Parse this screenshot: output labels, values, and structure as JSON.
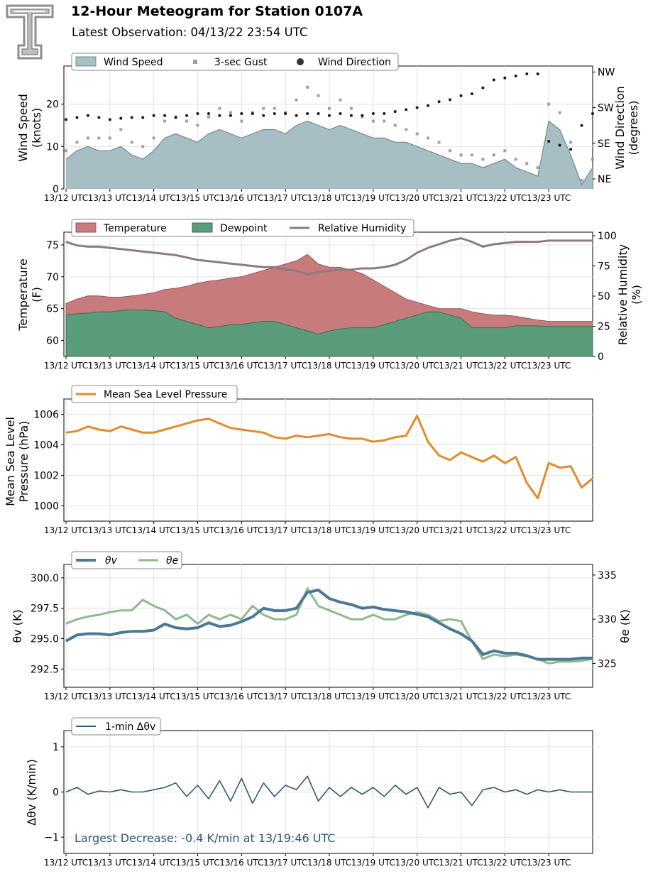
{
  "header": {
    "title": "12-Hour Meteogram for Station 0107A",
    "subtitle": "Latest Observation: 04/13/22 23:54 UTC",
    "logo_icon": "double-t-logo-icon"
  },
  "colors": {
    "wind_speed_fill": "#a7bfc3",
    "wind_speed_line": "#6b8d93",
    "gust": "#a39bb5",
    "wind_dir": "#1a1a1a",
    "temperature": "#c77b7d",
    "dewpoint": "#5a9b79",
    "rh": "#8e7b7d",
    "mslp": "#e38a2d",
    "theta_v": "#4a7a96",
    "theta_e": "#8fb98f",
    "dtheta": "#2e5a6e",
    "annotation": "#2a5a75"
  },
  "time_ticks": [
    "13/12 UTC",
    "13/13 UTC",
    "13/14 UTC",
    "13/15 UTC",
    "13/16 UTC",
    "13/17 UTC",
    "13/18 UTC",
    "13/19 UTC",
    "13/20 UTC",
    "13/21 UTC",
    "13/22 UTC",
    "13/23 UTC"
  ],
  "panels": {
    "wind": {
      "ylabel_left": [
        "Wind Speed",
        "(knots)"
      ],
      "ylabel_right": [
        "Wind Direction",
        "(degrees)"
      ],
      "yticks_left": [
        "0",
        "10",
        "20"
      ],
      "yticks_right": [
        "NE",
        "SE",
        "SW",
        "NW"
      ],
      "legend": {
        "speed": "Wind Speed",
        "gust": "3-sec Gust",
        "direction": "Wind Direction"
      }
    },
    "temp": {
      "ylabel_left": [
        "Temperature",
        "(F)"
      ],
      "ylabel_right": [
        "Relative Humidity",
        "(%)"
      ],
      "yticks_left": [
        "60",
        "65",
        "70",
        "75"
      ],
      "yticks_right": [
        "0",
        "25",
        "50",
        "75",
        "100"
      ],
      "legend": {
        "temp": "Temperature",
        "dew": "Dewpoint",
        "rh": "Relative Humidity"
      }
    },
    "mslp": {
      "ylabel_left": [
        "Mean Sea Level",
        "Pressure (hPa)"
      ],
      "yticks_left": [
        "1000",
        "1002",
        "1004",
        "1006"
      ],
      "legend": {
        "mslp": "Mean Sea Level Pressure"
      }
    },
    "theta": {
      "ylabel_left": "θv (K)",
      "ylabel_right": "θe (K)",
      "yticks_left": [
        "292.5",
        "295.0",
        "297.5",
        "300.0"
      ],
      "yticks_right": [
        "325",
        "330",
        "335"
      ],
      "legend": {
        "tv": "θv",
        "te": "θe"
      }
    },
    "dtheta": {
      "ylabel_left": "Δθv (K/min)",
      "yticks_left": [
        "−1",
        "0",
        "1"
      ],
      "legend": {
        "d": "1-min Δθv"
      },
      "annotation": "Largest Decrease: -0.4 K/min at 13/19:46 UTC"
    }
  },
  "chart_data": [
    {
      "type": "area",
      "title": "",
      "x_hours": [
        0,
        0.25,
        0.5,
        0.75,
        1,
        1.25,
        1.5,
        1.75,
        2,
        2.25,
        2.5,
        2.75,
        3,
        3.25,
        3.5,
        3.75,
        4,
        4.25,
        4.5,
        4.75,
        5,
        5.25,
        5.5,
        5.75,
        6,
        6.25,
        6.5,
        6.75,
        7,
        7.25,
        7.5,
        7.75,
        8,
        8.25,
        8.5,
        8.75,
        9,
        9.25,
        9.5,
        9.75,
        10,
        10.25,
        10.5,
        10.75,
        11,
        11.25,
        11.5,
        11.75,
        12
      ],
      "series": [
        {
          "name": "Wind Speed",
          "unit": "knots",
          "values": [
            7,
            9,
            10,
            9,
            9,
            10,
            8,
            7,
            9,
            12,
            13,
            12,
            11,
            13,
            14,
            13,
            12,
            13,
            14,
            14,
            13,
            15,
            16,
            15,
            14,
            15,
            14,
            13,
            12,
            12,
            11,
            11,
            10,
            9,
            8,
            7,
            6,
            6,
            5,
            6,
            7,
            5,
            4,
            3,
            16,
            14,
            8,
            1,
            5
          ]
        },
        {
          "name": "3-sec Gust",
          "unit": "knots",
          "values": [
            9,
            11,
            12,
            12,
            12,
            14,
            11,
            10,
            12,
            16,
            17,
            16,
            15,
            17,
            19,
            18,
            16,
            18,
            19,
            19,
            18,
            21,
            24,
            22,
            19,
            21,
            19,
            17,
            16,
            16,
            15,
            14,
            13,
            12,
            11,
            9,
            8,
            8,
            7,
            8,
            9,
            7,
            6,
            5,
            20,
            18,
            11,
            2,
            7
          ]
        },
        {
          "name": "Wind Direction",
          "unit": "degrees",
          "values": [
            195,
            200,
            205,
            200,
            195,
            198,
            200,
            200,
            205,
            205,
            200,
            205,
            210,
            210,
            205,
            205,
            210,
            210,
            205,
            210,
            210,
            205,
            210,
            210,
            205,
            210,
            205,
            205,
            210,
            210,
            215,
            220,
            225,
            230,
            240,
            245,
            255,
            260,
            275,
            295,
            300,
            305,
            310,
            310,
            140,
            130,
            120,
            180,
            210
          ]
        }
      ],
      "axes": {
        "left": "Wind Speed (knots)",
        "left_range": [
          0,
          29
        ],
        "right": "Wind Direction (degrees)",
        "right_range": [
          20,
          330
        ]
      }
    },
    {
      "type": "area",
      "title": "",
      "x_hours": [
        0,
        0.25,
        0.5,
        0.75,
        1,
        1.25,
        1.5,
        1.75,
        2,
        2.25,
        2.5,
        2.75,
        3,
        3.25,
        3.5,
        3.75,
        4,
        4.25,
        4.5,
        4.75,
        5,
        5.25,
        5.5,
        5.75,
        6,
        6.25,
        6.5,
        6.75,
        7,
        7.25,
        7.5,
        7.75,
        8,
        8.25,
        8.5,
        8.75,
        9,
        9.25,
        9.5,
        9.75,
        10,
        10.25,
        10.5,
        10.75,
        11,
        11.25,
        11.5,
        11.75,
        12
      ],
      "series": [
        {
          "name": "Temperature",
          "unit": "F",
          "values": [
            65.8,
            66.5,
            67.0,
            67.0,
            66.8,
            66.8,
            67.0,
            67.2,
            67.5,
            68.0,
            68.2,
            68.5,
            69.0,
            69.3,
            69.5,
            69.8,
            70.0,
            70.5,
            71.0,
            71.5,
            72.0,
            72.5,
            73.5,
            72.0,
            71.5,
            71.5,
            71.0,
            70.5,
            69.5,
            68.5,
            67.5,
            66.5,
            66.0,
            65.5,
            65.0,
            65.0,
            65.0,
            64.5,
            64.2,
            64.0,
            64.0,
            63.8,
            63.5,
            63.2,
            63.0,
            63.0,
            63.0,
            63.0,
            63.0
          ]
        },
        {
          "name": "Dewpoint",
          "unit": "F",
          "values": [
            64.0,
            64.2,
            64.3,
            64.5,
            64.5,
            64.7,
            64.8,
            64.8,
            64.7,
            64.5,
            63.5,
            63.0,
            62.5,
            62.0,
            62.2,
            62.5,
            62.5,
            62.8,
            63.0,
            63.0,
            62.5,
            62.0,
            61.5,
            61.0,
            61.5,
            61.8,
            62.0,
            62.0,
            62.0,
            62.5,
            63.0,
            63.5,
            64.0,
            64.5,
            64.5,
            64.0,
            63.5,
            62.0,
            62.0,
            62.0,
            62.0,
            62.3,
            62.3,
            62.3,
            62.2,
            62.2,
            62.2,
            62.2,
            62.2
          ]
        },
        {
          "name": "Relative Humidity",
          "unit": "%",
          "values": [
            95,
            92,
            91,
            91,
            90,
            89,
            88,
            87,
            86,
            85,
            84,
            82,
            80,
            79,
            78,
            77,
            76,
            75,
            74,
            74,
            72,
            71,
            68,
            70,
            71,
            72,
            72,
            73,
            73,
            74,
            76,
            80,
            86,
            90,
            93,
            96,
            98,
            95,
            91,
            93,
            94,
            95,
            95,
            95,
            96,
            96,
            96,
            96,
            96
          ]
        }
      ],
      "axes": {
        "left": "Temperature (F)",
        "left_range": [
          57.5,
          77
        ],
        "right": "Relative Humidity (%)",
        "right_range": [
          0,
          103
        ]
      }
    },
    {
      "type": "line",
      "title": "",
      "x_hours": [
        0,
        0.25,
        0.5,
        0.75,
        1,
        1.25,
        1.5,
        1.75,
        2,
        2.25,
        2.5,
        2.75,
        3,
        3.25,
        3.5,
        3.75,
        4,
        4.25,
        4.5,
        4.75,
        5,
        5.25,
        5.5,
        5.75,
        6,
        6.25,
        6.5,
        6.75,
        7,
        7.25,
        7.5,
        7.75,
        8,
        8.25,
        8.5,
        8.75,
        9,
        9.25,
        9.5,
        9.75,
        10,
        10.25,
        10.5,
        10.75,
        11,
        11.25,
        11.5,
        11.75,
        12
      ],
      "series": [
        {
          "name": "Mean Sea Level Pressure",
          "unit": "hPa",
          "values": [
            1004.8,
            1004.9,
            1005.2,
            1005.0,
            1004.9,
            1005.2,
            1005.0,
            1004.8,
            1004.8,
            1005.0,
            1005.2,
            1005.4,
            1005.6,
            1005.7,
            1005.4,
            1005.1,
            1005.0,
            1004.9,
            1004.8,
            1004.5,
            1004.4,
            1004.6,
            1004.5,
            1004.6,
            1004.7,
            1004.5,
            1004.4,
            1004.4,
            1004.2,
            1004.3,
            1004.5,
            1004.6,
            1005.9,
            1004.2,
            1003.3,
            1003.0,
            1003.5,
            1003.2,
            1002.9,
            1003.3,
            1002.8,
            1003.2,
            1001.5,
            1000.5,
            1002.8,
            1002.5,
            1002.6,
            1001.2,
            1001.8
          ]
        }
      ],
      "axes": {
        "left": "Mean Sea Level Pressure (hPa)",
        "left_range": [
          999,
          1007
        ]
      }
    },
    {
      "type": "line",
      "title": "",
      "x_hours": [
        0,
        0.25,
        0.5,
        0.75,
        1,
        1.25,
        1.5,
        1.75,
        2,
        2.25,
        2.5,
        2.75,
        3,
        3.25,
        3.5,
        3.75,
        4,
        4.25,
        4.5,
        4.75,
        5,
        5.25,
        5.5,
        5.75,
        6,
        6.25,
        6.5,
        6.75,
        7,
        7.25,
        7.5,
        7.75,
        8,
        8.25,
        8.5,
        8.75,
        9,
        9.25,
        9.5,
        9.75,
        10,
        10.25,
        10.5,
        10.75,
        11,
        11.25,
        11.5,
        11.75,
        12
      ],
      "series": [
        {
          "name": "θv",
          "unit": "K",
          "values": [
            294.8,
            295.3,
            295.4,
            295.4,
            295.3,
            295.5,
            295.6,
            295.6,
            295.7,
            296.2,
            295.9,
            295.8,
            295.9,
            296.3,
            296.0,
            296.1,
            296.4,
            296.8,
            297.5,
            297.3,
            297.3,
            297.5,
            298.8,
            299.0,
            298.3,
            298.0,
            297.8,
            297.5,
            297.6,
            297.4,
            297.3,
            297.2,
            297.0,
            296.8,
            296.3,
            295.8,
            295.4,
            294.8,
            293.7,
            294.0,
            293.8,
            293.8,
            293.6,
            293.3,
            293.3,
            293.3,
            293.3,
            293.4,
            293.4
          ]
        },
        {
          "name": "θe",
          "unit": "K",
          "values": [
            329.5,
            330.0,
            330.3,
            330.5,
            330.8,
            331.0,
            331.0,
            332.2,
            331.5,
            331.0,
            330.0,
            330.5,
            329.5,
            330.5,
            330.0,
            330.5,
            330.0,
            331.5,
            330.5,
            330.0,
            330.0,
            330.5,
            333.5,
            331.5,
            331.0,
            330.5,
            330.0,
            330.0,
            330.5,
            330.0,
            330.0,
            330.5,
            330.8,
            330.5,
            329.8,
            330.0,
            329.8,
            327.5,
            325.5,
            326.0,
            325.8,
            326.0,
            325.8,
            325.5,
            325.0,
            325.2,
            325.2,
            325.3,
            325.5
          ]
        }
      ],
      "axes": {
        "left": "θv (K)",
        "left_range": [
          291.0,
          301.1
        ],
        "right": "θe (K)",
        "right_range": [
          322.3,
          336.2
        ]
      }
    },
    {
      "type": "line",
      "title": "",
      "x_hours": [
        0,
        0.25,
        0.5,
        0.75,
        1,
        1.25,
        1.5,
        1.75,
        2,
        2.25,
        2.5,
        2.75,
        3,
        3.25,
        3.5,
        3.75,
        4,
        4.25,
        4.5,
        4.75,
        5,
        5.25,
        5.5,
        5.75,
        6,
        6.25,
        6.5,
        6.75,
        7,
        7.25,
        7.5,
        7.75,
        8,
        8.25,
        8.5,
        8.75,
        9,
        9.25,
        9.5,
        9.75,
        10,
        10.25,
        10.5,
        10.75,
        11,
        11.25,
        11.5,
        11.75,
        12
      ],
      "series": [
        {
          "name": "1-min Δθv",
          "unit": "K/min",
          "values": [
            0.0,
            0.1,
            -0.05,
            0.02,
            0.0,
            0.05,
            0.0,
            0.0,
            0.05,
            0.1,
            0.2,
            -0.1,
            0.15,
            -0.15,
            0.25,
            -0.2,
            0.3,
            -0.25,
            0.2,
            -0.1,
            0.15,
            0.05,
            0.35,
            -0.2,
            0.1,
            -0.1,
            0.1,
            -0.05,
            0.1,
            -0.1,
            0.15,
            -0.05,
            0.1,
            -0.35,
            0.1,
            -0.05,
            0.0,
            -0.3,
            0.05,
            0.1,
            0.0,
            0.05,
            -0.05,
            0.05,
            0.0,
            0.05,
            0.0,
            0.0,
            0.0
          ]
        }
      ],
      "axes": {
        "left": "Δθv (K/min)",
        "left_range": [
          -1.36,
          1.36
        ]
      },
      "annotation": "Largest Decrease: -0.4 K/min at 13/19:46 UTC"
    }
  ]
}
